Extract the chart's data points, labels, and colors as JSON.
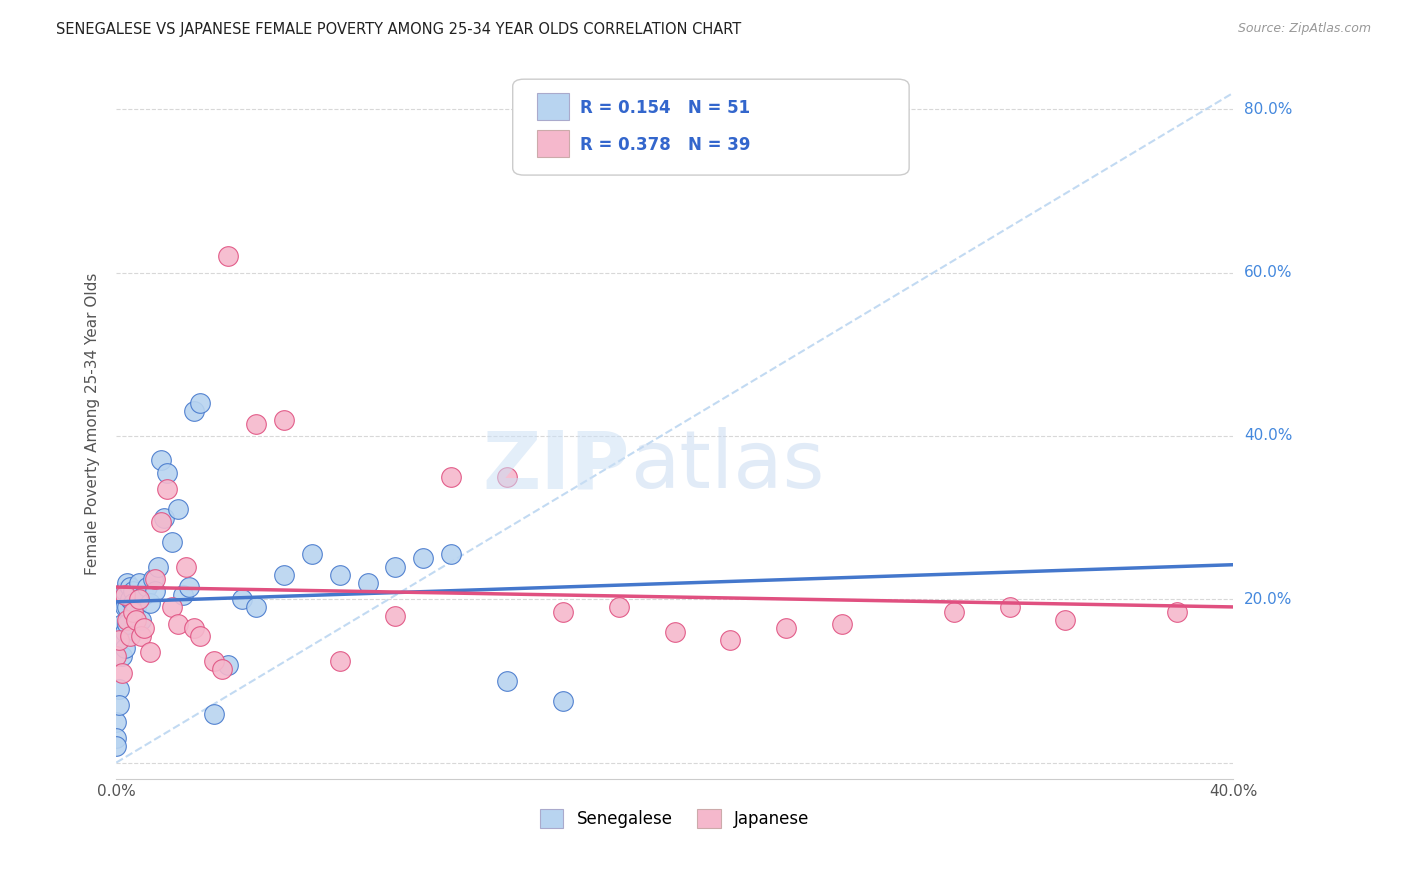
{
  "title": "SENEGALESE VS JAPANESE FEMALE POVERTY AMONG 25-34 YEAR OLDS CORRELATION CHART",
  "source": "Source: ZipAtlas.com",
  "ylabel": "Female Poverty Among 25-34 Year Olds",
  "xlim": [
    0.0,
    0.4
  ],
  "ylim": [
    -0.02,
    0.85
  ],
  "x_ticks": [
    0.0,
    0.05,
    0.1,
    0.15,
    0.2,
    0.25,
    0.3,
    0.35,
    0.4
  ],
  "y_ticks": [
    0.0,
    0.2,
    0.4,
    0.6,
    0.8
  ],
  "background_color": "#ffffff",
  "grid_color": "#d8d8d8",
  "senegalese_color": "#b8d4f0",
  "japanese_color": "#f5b8cc",
  "senegalese_line_color": "#4477cc",
  "japanese_line_color": "#e05080",
  "diag_line_color": "#b8d4f0",
  "R_senegalese": 0.154,
  "N_senegalese": 51,
  "R_japanese": 0.378,
  "N_japanese": 39,
  "legend_text_color": "#3366cc",
  "ytick_color": "#4488dd",
  "senegalese_x": [
    0.0,
    0.0,
    0.0,
    0.001,
    0.001,
    0.001,
    0.002,
    0.002,
    0.002,
    0.003,
    0.003,
    0.003,
    0.003,
    0.004,
    0.004,
    0.004,
    0.005,
    0.005,
    0.006,
    0.006,
    0.007,
    0.008,
    0.009,
    0.01,
    0.011,
    0.012,
    0.013,
    0.014,
    0.015,
    0.016,
    0.017,
    0.018,
    0.02,
    0.022,
    0.024,
    0.026,
    0.028,
    0.03,
    0.035,
    0.04,
    0.045,
    0.05,
    0.06,
    0.07,
    0.08,
    0.09,
    0.1,
    0.11,
    0.12,
    0.14,
    0.16
  ],
  "senegalese_y": [
    0.05,
    0.03,
    0.02,
    0.15,
    0.09,
    0.07,
    0.2,
    0.17,
    0.13,
    0.21,
    0.19,
    0.16,
    0.14,
    0.22,
    0.19,
    0.17,
    0.215,
    0.2,
    0.21,
    0.195,
    0.19,
    0.22,
    0.175,
    0.205,
    0.215,
    0.195,
    0.225,
    0.21,
    0.24,
    0.37,
    0.3,
    0.355,
    0.27,
    0.31,
    0.205,
    0.215,
    0.43,
    0.44,
    0.06,
    0.12,
    0.2,
    0.19,
    0.23,
    0.255,
    0.23,
    0.22,
    0.24,
    0.25,
    0.255,
    0.1,
    0.075
  ],
  "japanese_x": [
    0.0,
    0.001,
    0.002,
    0.003,
    0.004,
    0.005,
    0.006,
    0.007,
    0.008,
    0.009,
    0.01,
    0.012,
    0.014,
    0.016,
    0.018,
    0.02,
    0.022,
    0.025,
    0.028,
    0.03,
    0.035,
    0.038,
    0.04,
    0.05,
    0.06,
    0.08,
    0.1,
    0.12,
    0.14,
    0.16,
    0.18,
    0.2,
    0.22,
    0.24,
    0.26,
    0.3,
    0.32,
    0.34,
    0.38
  ],
  "japanese_y": [
    0.13,
    0.15,
    0.11,
    0.205,
    0.175,
    0.155,
    0.185,
    0.175,
    0.2,
    0.155,
    0.165,
    0.135,
    0.225,
    0.295,
    0.335,
    0.19,
    0.17,
    0.24,
    0.165,
    0.155,
    0.125,
    0.115,
    0.62,
    0.415,
    0.42,
    0.125,
    0.18,
    0.35,
    0.35,
    0.185,
    0.19,
    0.16,
    0.15,
    0.165,
    0.17,
    0.185,
    0.19,
    0.175,
    0.185
  ]
}
